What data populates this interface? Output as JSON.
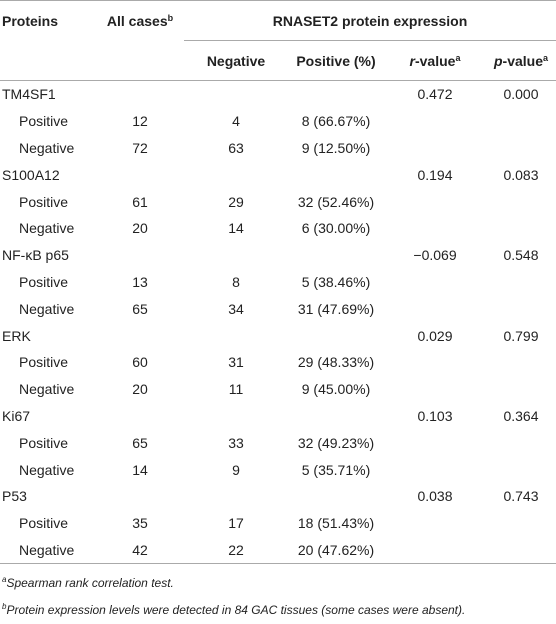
{
  "table": {
    "header": {
      "proteins": "Proteins",
      "all_cases": {
        "text": "All cases",
        "sup": "b"
      },
      "group": "RNASET2 protein expression",
      "negative": "Negative",
      "positive": "Positive (%)",
      "r_value": {
        "italic": "r",
        "text": "-value",
        "sup": "a"
      },
      "p_value": {
        "italic": "p",
        "text": "-value",
        "sup": "a"
      }
    },
    "groups": [
      {
        "name": "TM4SF1",
        "r": "0.472",
        "p": "0.000",
        "rows": [
          [
            "Positive",
            "12",
            "4",
            "8 (66.67%)"
          ],
          [
            "Negative",
            "72",
            "63",
            "9 (12.50%)"
          ]
        ]
      },
      {
        "name": "S100A12",
        "r": "0.194",
        "p": "0.083",
        "rows": [
          [
            "Positive",
            "61",
            "29",
            "32 (52.46%)"
          ],
          [
            "Negative",
            "20",
            "14",
            "6 (30.00%)"
          ]
        ]
      },
      {
        "name": "NF-κB p65",
        "r": "−0.069",
        "p": "0.548",
        "rows": [
          [
            "Positive",
            "13",
            "8",
            "5 (38.46%)"
          ],
          [
            "Negative",
            "65",
            "34",
            "31 (47.69%)"
          ]
        ]
      },
      {
        "name": "ERK",
        "r": "0.029",
        "p": "0.799",
        "rows": [
          [
            "Positive",
            "60",
            "31",
            "29 (48.33%)"
          ],
          [
            "Negative",
            "20",
            "11",
            "9 (45.00%)"
          ]
        ]
      },
      {
        "name": "Ki67",
        "r": "0.103",
        "p": "0.364",
        "rows": [
          [
            "Positive",
            "65",
            "33",
            "32 (49.23%)"
          ],
          [
            "Negative",
            "14",
            "9",
            "5 (35.71%)"
          ]
        ]
      },
      {
        "name": "P53",
        "r": "0.038",
        "p": "0.743",
        "rows": [
          [
            "Positive",
            "35",
            "17",
            "18 (51.43%)"
          ],
          [
            "Negative",
            "42",
            "22",
            "20 (47.62%)"
          ]
        ]
      }
    ],
    "footnotes": [
      {
        "sup": "a",
        "text": "Spearman rank correlation test."
      },
      {
        "sup": "b",
        "text": "Protein expression levels were detected in 84 GAC tissues (some cases were absent)."
      }
    ]
  }
}
